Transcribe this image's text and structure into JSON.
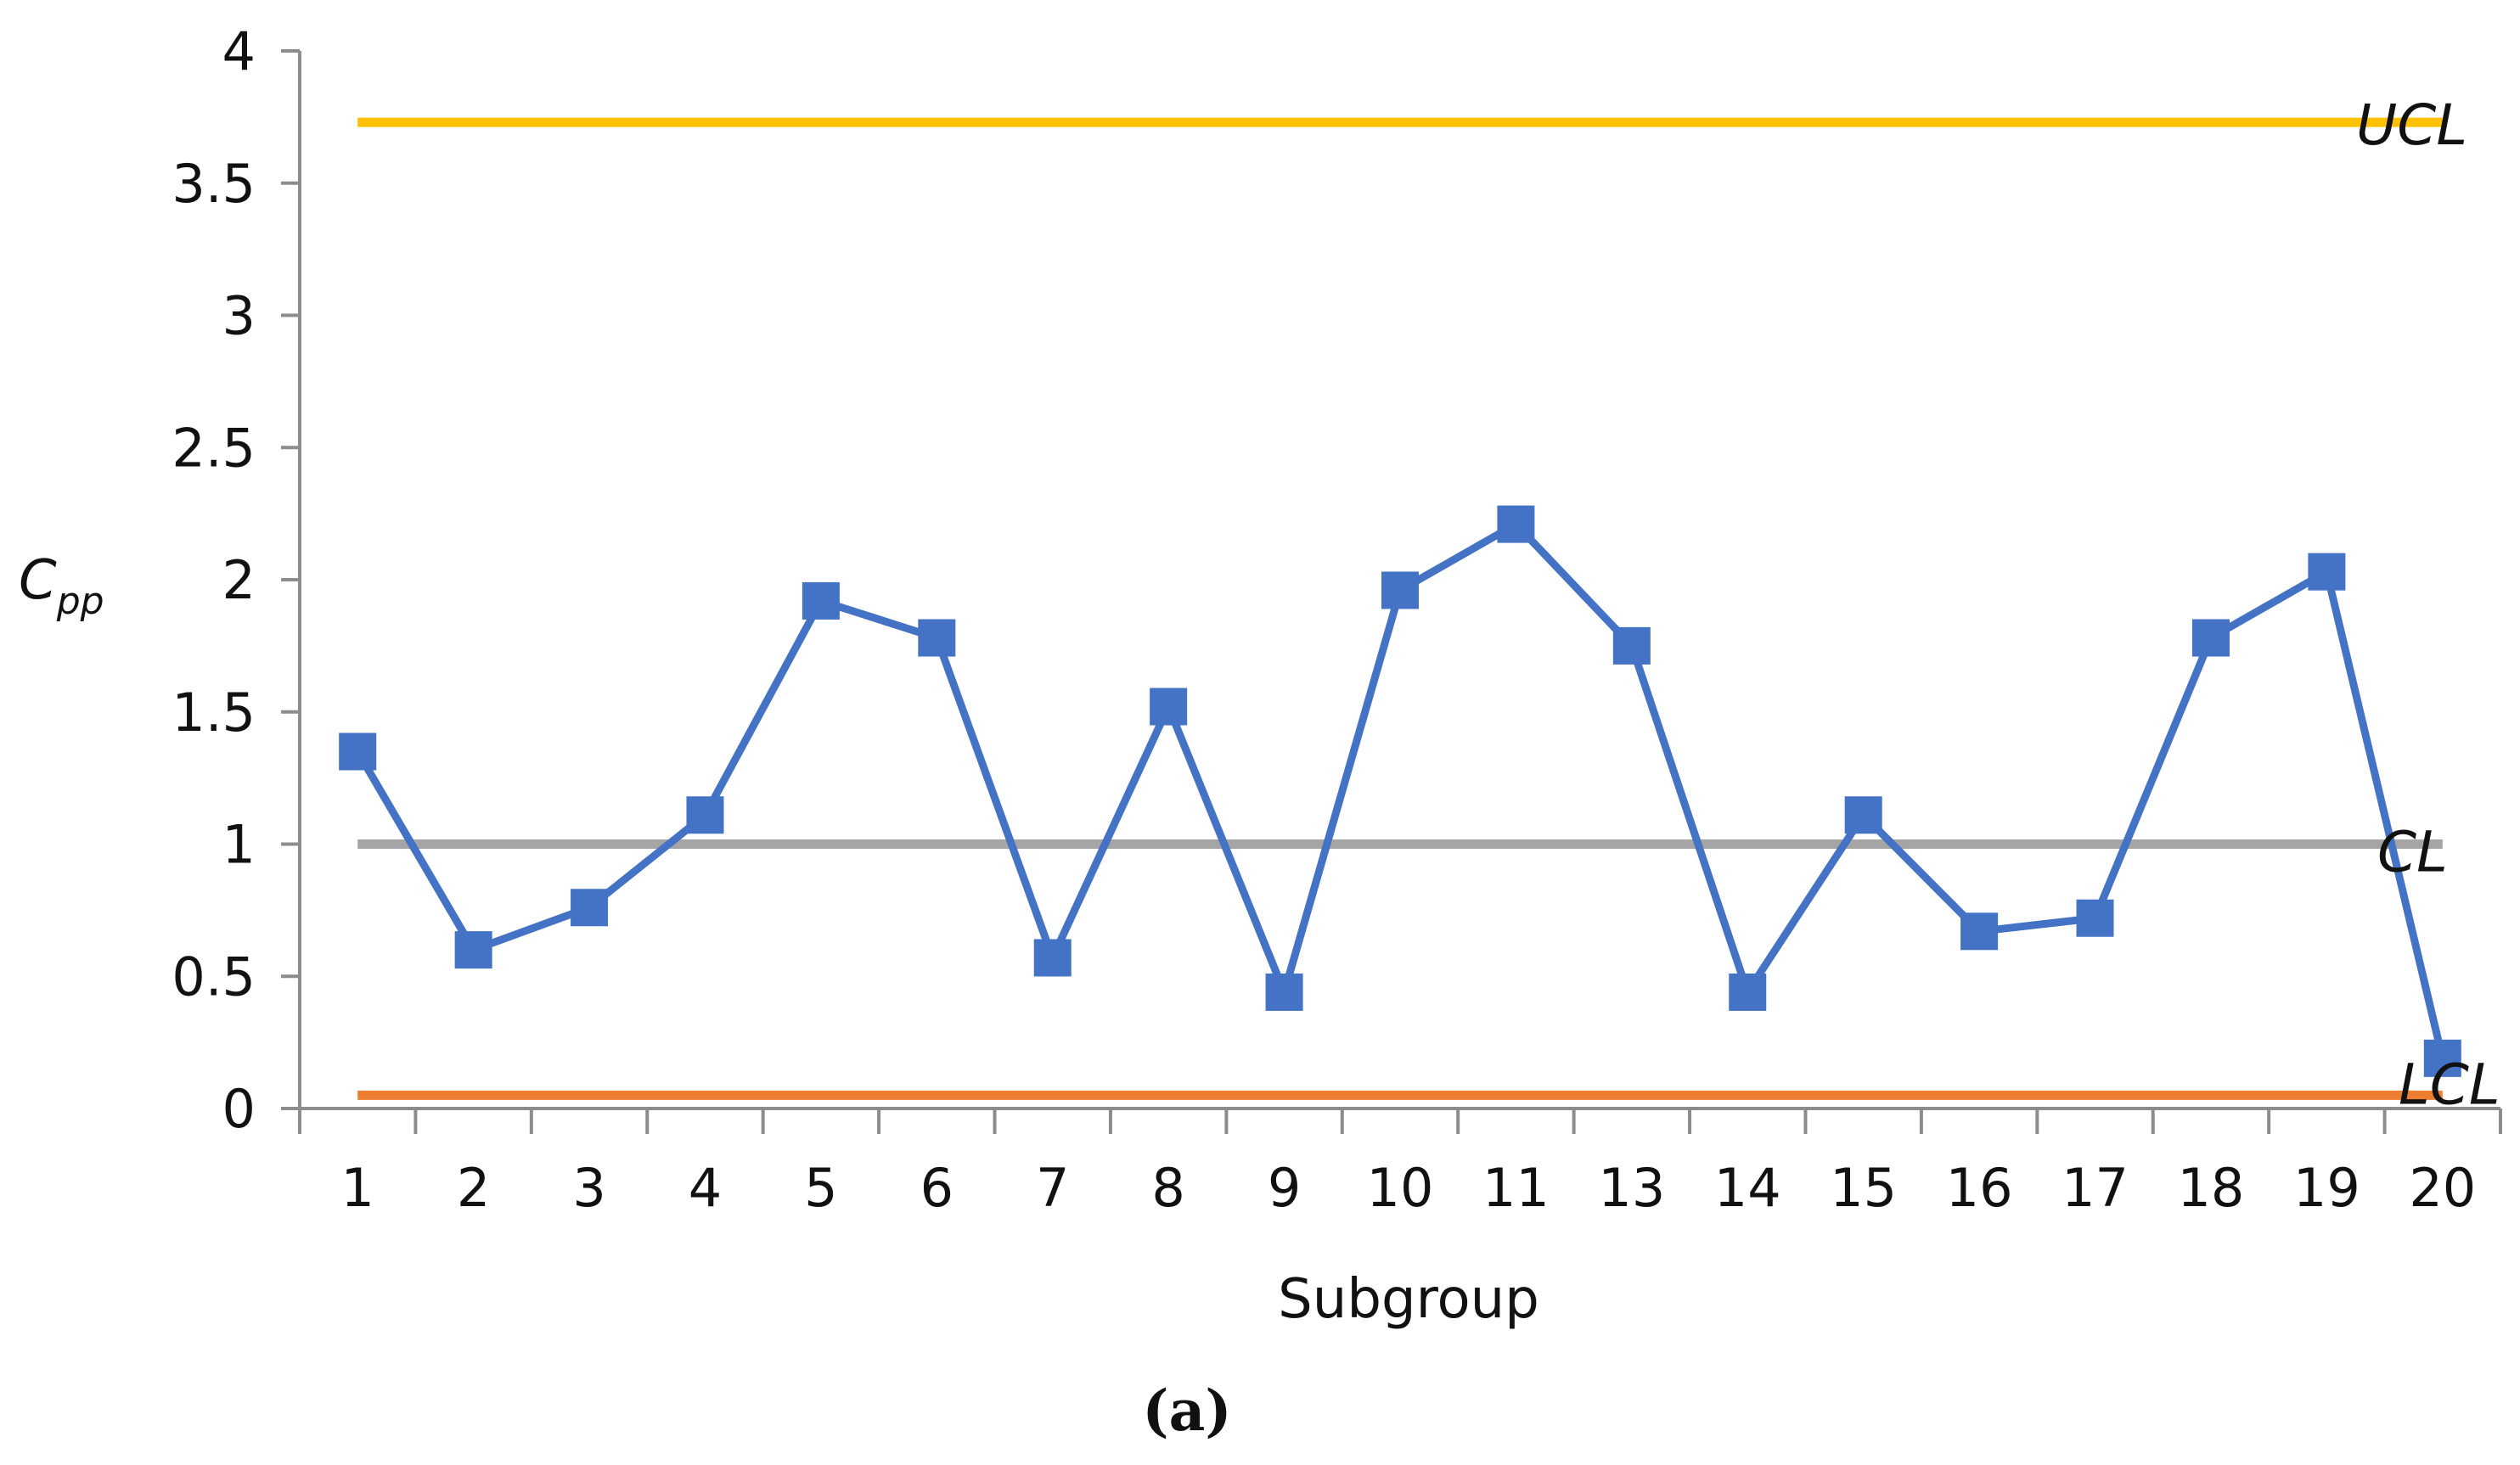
{
  "chart_data": {
    "type": "line",
    "ylabel": "C",
    "ylabel_subscript": "pp",
    "xlabel": "Subgroup",
    "caption": "(a)",
    "ylim": [
      0,
      4
    ],
    "yticks": [
      "0",
      "0.5",
      "1",
      "1.5",
      "2",
      "2.5",
      "3",
      "3.5",
      "4"
    ],
    "categories": [
      "1",
      "2",
      "3",
      "4",
      "5",
      "6",
      "7",
      "8",
      "9",
      "10",
      "11",
      "13",
      "14",
      "15",
      "16",
      "17",
      "18",
      "19",
      "20"
    ],
    "series": [
      {
        "values": [
          1.35,
          0.6,
          0.76,
          1.11,
          1.92,
          1.78,
          0.57,
          1.52,
          0.44,
          1.96,
          2.21,
          1.75,
          0.44,
          1.11,
          0.67,
          0.72,
          1.78,
          2.03,
          0.19
        ],
        "color": "#4472C4"
      }
    ],
    "control_lines": [
      {
        "label": "UCL",
        "value": 3.73,
        "color": "#FFC000"
      },
      {
        "label": "CL",
        "value": 1.0,
        "color": "#A5A5A5"
      },
      {
        "label": "LCL",
        "value": 0.05,
        "color": "#ED7D31"
      }
    ],
    "grid": false,
    "legend": "none"
  }
}
